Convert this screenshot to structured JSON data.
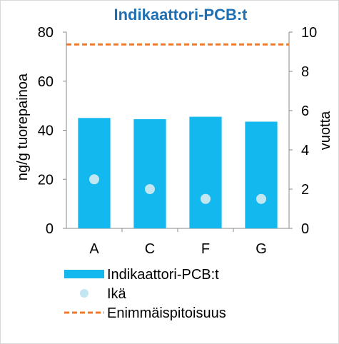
{
  "chart_data": {
    "type": "bar",
    "title": "Indikaattori-PCB:t",
    "categories": [
      "A",
      "C",
      "F",
      "G"
    ],
    "series": [
      {
        "name": "Indikaattori-PCB:t",
        "type": "bar",
        "axis": "left",
        "values": [
          45,
          44.5,
          45.5,
          43.5
        ],
        "color": "#12b8ee"
      },
      {
        "name": "Ikä",
        "type": "scatter",
        "axis": "right",
        "values": [
          2.5,
          2.0,
          1.5,
          1.5
        ],
        "color": "#c2e6f2"
      },
      {
        "name": "Enimmäispitoisuus",
        "type": "line",
        "style": "dashed",
        "axis": "left",
        "value": 75,
        "color": "#f07a2c"
      }
    ],
    "ylabel": "ng/g tuorepainoa",
    "ylim": [
      0,
      80
    ],
    "yticks": [
      "0",
      "20",
      "40",
      "60",
      "80"
    ],
    "y2label": "vuotta",
    "y2lim": [
      0,
      10
    ],
    "y2ticks": [
      "0",
      "2",
      "4",
      "6",
      "8",
      "10"
    ],
    "grid": false,
    "legend": "bottom"
  }
}
